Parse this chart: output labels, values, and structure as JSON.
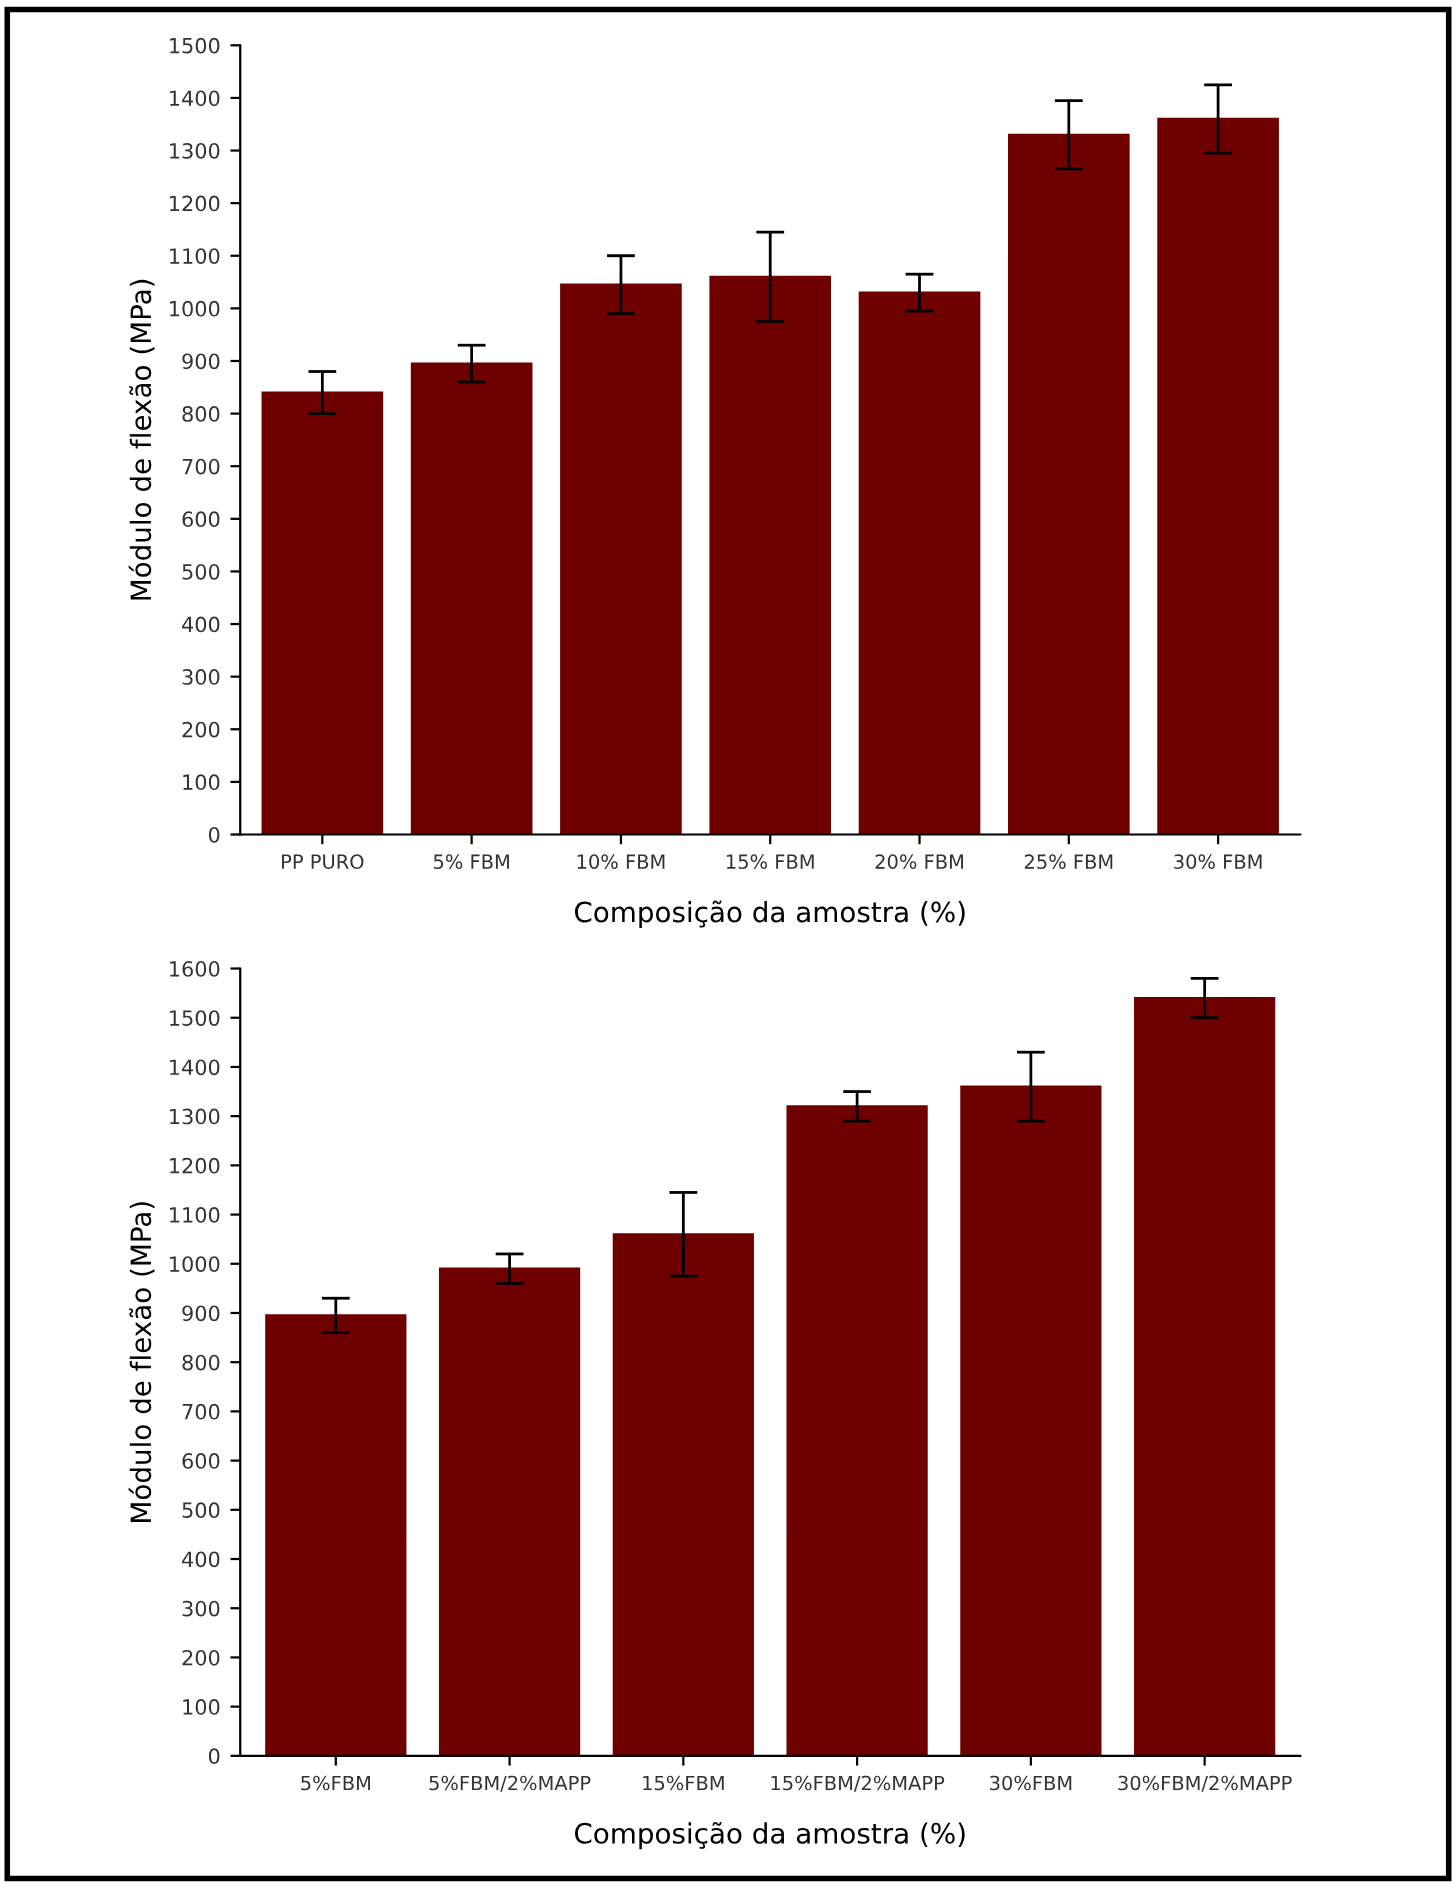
{
  "chart_data": [
    {
      "type": "bar",
      "xlabel": "Composição da amostra (%)",
      "ylabel": "Módulo de flexão (MPa)",
      "categories": [
        "PP PURO",
        "5% FBM",
        "10% FBM",
        "15% FBM",
        "20% FBM",
        "25% FBM",
        "30% FBM"
      ],
      "values": [
        840,
        895,
        1045,
        1060,
        1030,
        1330,
        1360
      ],
      "errors": [
        40,
        35,
        55,
        85,
        35,
        65,
        65
      ],
      "color": "#6e0000",
      "ylim": [
        0,
        1500
      ],
      "yticks": [
        0,
        100,
        200,
        300,
        400,
        500,
        600,
        700,
        800,
        900,
        1000,
        1100,
        1200,
        1300,
        1400,
        1500
      ],
      "grid": false,
      "legend": false
    },
    {
      "type": "bar",
      "xlabel": "Composição da amostra (%)",
      "ylabel": "Módulo de flexão (MPa)",
      "categories": [
        "5%FBM",
        "5%FBM/2%MAPP",
        "15%FBM",
        "15%FBM/2%MAPP",
        "30%FBM",
        "30%FBM/2%MAPP"
      ],
      "values": [
        895,
        990,
        1060,
        1320,
        1360,
        1540
      ],
      "errors": [
        35,
        30,
        85,
        30,
        70,
        40
      ],
      "color": "#6e0000",
      "ylim": [
        0,
        1600
      ],
      "yticks": [
        0,
        100,
        200,
        300,
        400,
        500,
        600,
        700,
        800,
        900,
        1000,
        1100,
        1200,
        1300,
        1400,
        1500,
        1600
      ],
      "grid": false,
      "legend": false
    }
  ]
}
